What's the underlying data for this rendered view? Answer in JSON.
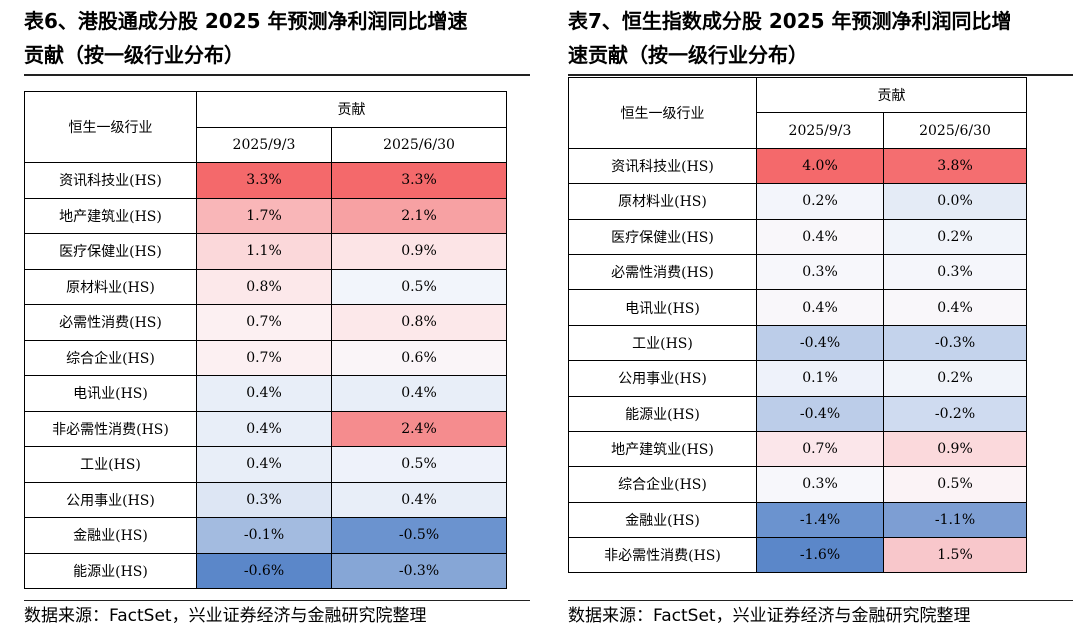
{
  "left": {
    "title_line1": "表6、港股通成分股 2025 年预测净利润同比增速",
    "title_line2": "贡献（按一级行业分布）",
    "header_col": "恒生一级行业",
    "header_group": "贡献",
    "header_dates": [
      "2025/9/3",
      "2025/6/30"
    ],
    "rows": [
      {
        "name": "资讯科技业(HS)",
        "v1": "3.3%",
        "v2": "3.3%",
        "c1": "#f4696b",
        "c2": "#f4696b"
      },
      {
        "name": "地产建筑业(HS)",
        "v1": "1.7%",
        "v2": "2.1%",
        "c1": "#f9b6b8",
        "c2": "#f7a1a3"
      },
      {
        "name": "医疗保健业(HS)",
        "v1": "1.1%",
        "v2": "0.9%",
        "c1": "#fbd8da",
        "c2": "#fce4e6"
      },
      {
        "name": "原材料业(HS)",
        "v1": "0.8%",
        "v2": "0.5%",
        "c1": "#fce8ea",
        "c2": "#f2f5fb"
      },
      {
        "name": "必需性消费(HS)",
        "v1": "0.7%",
        "v2": "0.8%",
        "c1": "#fcf0f2",
        "c2": "#fce8ea"
      },
      {
        "name": "综合企业(HS)",
        "v1": "0.7%",
        "v2": "0.6%",
        "c1": "#fcf0f2",
        "c2": "#faf5f8"
      },
      {
        "name": "电讯业(HS)",
        "v1": "0.4%",
        "v2": "0.4%",
        "c1": "#e8eef8",
        "c2": "#e8eef8"
      },
      {
        "name": "非必需性消费(HS)",
        "v1": "0.4%",
        "v2": "2.4%",
        "c1": "#e8eef8",
        "c2": "#f58c8e"
      },
      {
        "name": "工业(HS)",
        "v1": "0.4%",
        "v2": "0.5%",
        "c1": "#e8eef8",
        "c2": "#eef2fa"
      },
      {
        "name": "公用事业(HS)",
        "v1": "0.3%",
        "v2": "0.4%",
        "c1": "#dde6f4",
        "c2": "#e8eef8"
      },
      {
        "name": "金融业(HS)",
        "v1": "-0.1%",
        "v2": "-0.5%",
        "c1": "#a3bbe0",
        "c2": "#6b93cf"
      },
      {
        "name": "能源业(HS)",
        "v1": "-0.6%",
        "v2": "-0.3%",
        "c1": "#5b87c9",
        "c2": "#86a6d6"
      }
    ],
    "source": "数据来源：FactSet，兴业证券经济与金融研究院整理"
  },
  "right": {
    "title_line1": "表7、恒生指数成分股 2025 年预测净利润同比增",
    "title_line2": "速贡献（按一级行业分布）",
    "header_col": "恒生一级行业",
    "header_group": "贡献",
    "header_dates": [
      "2025/9/3",
      "2025/6/30"
    ],
    "rows": [
      {
        "name": "资讯科技业(HS)",
        "v1": "4.0%",
        "v2": "3.8%",
        "c1": "#f4696b",
        "c2": "#f46e70"
      },
      {
        "name": "原材料业(HS)",
        "v1": "0.2%",
        "v2": "0.0%",
        "c1": "#f3f5fb",
        "c2": "#e4ebf6"
      },
      {
        "name": "医疗保健业(HS)",
        "v1": "0.4%",
        "v2": "0.2%",
        "c1": "#f9f7fa",
        "c2": "#f1f4fa"
      },
      {
        "name": "必需性消费(HS)",
        "v1": "0.3%",
        "v2": "0.3%",
        "c1": "#f7f7fb",
        "c2": "#f5f6fb"
      },
      {
        "name": "电讯业(HS)",
        "v1": "0.4%",
        "v2": "0.4%",
        "c1": "#f9f7fa",
        "c2": "#f9f7fa"
      },
      {
        "name": "工业(HS)",
        "v1": "-0.4%",
        "v2": "-0.3%",
        "c1": "#bccde9",
        "c2": "#c4d3ec"
      },
      {
        "name": "公用事业(HS)",
        "v1": "0.1%",
        "v2": "0.2%",
        "c1": "#eef2fa",
        "c2": "#f1f4fa"
      },
      {
        "name": "能源业(HS)",
        "v1": "-0.4%",
        "v2": "-0.2%",
        "c1": "#bccde9",
        "c2": "#cfdbf0"
      },
      {
        "name": "地产建筑业(HS)",
        "v1": "0.7%",
        "v2": "0.9%",
        "c1": "#fbe6ea",
        "c2": "#fbd9dc"
      },
      {
        "name": "综合企业(HS)",
        "v1": "0.3%",
        "v2": "0.5%",
        "c1": "#f7f7fb",
        "c2": "#fbf3f6"
      },
      {
        "name": "金融业(HS)",
        "v1": "-1.4%",
        "v2": "-1.1%",
        "c1": "#6b93cf",
        "c2": "#7d9ed3"
      },
      {
        "name": "非必需性消费(HS)",
        "v1": "-1.6%",
        "v2": "1.5%",
        "c1": "#5b87c9",
        "c2": "#f8c7cb"
      }
    ],
    "source": "数据来源：FactSet，兴业证券经济与金融研究院整理"
  }
}
